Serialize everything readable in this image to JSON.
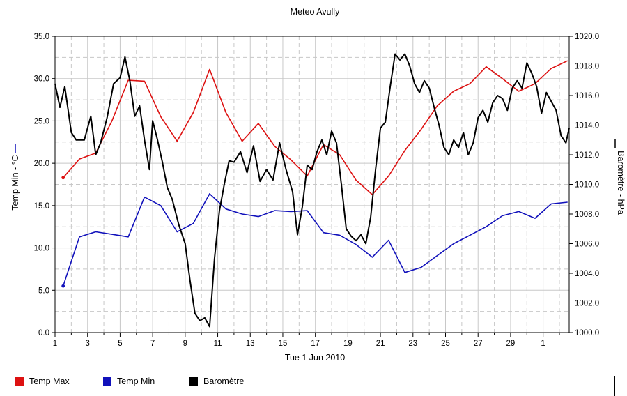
{
  "chart_data": {
    "type": "line",
    "title": "Meteo  Avully",
    "xlabel": "Tue 1 Jun 2010",
    "ylabel_left": "Temp Min - °C",
    "ylabel_right": "Baromètre - hPa",
    "x_tick_labels": [
      "1",
      "3",
      "5",
      "7",
      "9",
      "11",
      "13",
      "15",
      "17",
      "19",
      "21",
      "23",
      "25",
      "27",
      "29",
      "1"
    ],
    "y_left_ticks": [
      "0.0",
      "5.0",
      "10.0",
      "15.0",
      "20.0",
      "25.0",
      "30.0",
      "35.0"
    ],
    "y_right_ticks": [
      "1000.0",
      "1002.0",
      "1004.0",
      "1006.0",
      "1008.0",
      "1010.0",
      "1012.0",
      "1014.0",
      "1016.0",
      "1018.0",
      "1020.0"
    ],
    "ylim_left": [
      0,
      35
    ],
    "ylim_right": [
      1000,
      1020
    ],
    "xlim": [
      1,
      32.6
    ],
    "grid": true,
    "legend_position": "bottom",
    "colors": {
      "temp_max": "#dd1111",
      "temp_min": "#1111bb",
      "barometre": "#000000",
      "grid": "#c8c8c8"
    },
    "series": [
      {
        "name": "Temp Max",
        "axis": "left",
        "x": [
          1.5,
          2.5,
          3.5,
          4.5,
          5.5,
          6.5,
          7.5,
          8.5,
          9.5,
          10.5,
          11.5,
          12.5,
          13.5,
          14.5,
          15.5,
          16.5,
          17.5,
          18.5,
          19.5,
          20.5,
          21.5,
          22.5,
          23.5,
          24.5,
          25.5,
          26.5,
          27.5,
          28.5,
          29.5,
          30.5,
          31.5,
          32.5
        ],
        "values": [
          18.3,
          20.5,
          21.2,
          25.0,
          29.8,
          29.7,
          25.5,
          22.6,
          26.0,
          31.1,
          26.0,
          22.6,
          24.7,
          22.0,
          20.4,
          18.5,
          22.2,
          21.0,
          18.0,
          16.3,
          18.5,
          21.5,
          24.0,
          26.8,
          28.5,
          29.4,
          31.4,
          30.0,
          28.5,
          29.4,
          31.2,
          32.1
        ]
      },
      {
        "name": "Temp Min",
        "axis": "left",
        "x": [
          1.5,
          2.5,
          3.5,
          4.5,
          5.5,
          6.5,
          7.5,
          8.5,
          9.5,
          10.5,
          11.5,
          12.5,
          13.5,
          14.5,
          15.5,
          16.5,
          17.5,
          18.5,
          19.5,
          20.5,
          21.5,
          22.5,
          23.5,
          24.5,
          25.5,
          26.5,
          27.5,
          28.5,
          29.5,
          30.5,
          31.5,
          32.5
        ],
        "values": [
          5.5,
          11.3,
          11.9,
          11.6,
          11.3,
          16.0,
          15.0,
          11.9,
          12.9,
          16.4,
          14.6,
          14.0,
          13.7,
          14.4,
          14.3,
          14.4,
          11.8,
          11.5,
          10.4,
          8.9,
          10.9,
          7.1,
          7.7,
          9.1,
          10.5,
          11.5,
          12.5,
          13.8,
          14.3,
          13.5,
          15.2,
          15.4
        ]
      },
      {
        "name": "Baromètre",
        "axis": "right",
        "x": [
          1.0,
          1.3,
          1.6,
          2.0,
          2.3,
          2.8,
          3.2,
          3.5,
          3.8,
          4.2,
          4.6,
          5.0,
          5.3,
          5.6,
          5.9,
          6.2,
          6.5,
          6.8,
          7.0,
          7.3,
          7.6,
          7.9,
          8.2,
          8.6,
          9.0,
          9.3,
          9.6,
          9.9,
          10.2,
          10.5,
          10.8,
          11.1,
          11.4,
          11.7,
          12.0,
          12.4,
          12.8,
          13.2,
          13.6,
          14.0,
          14.4,
          14.8,
          15.2,
          15.6,
          15.9,
          16.2,
          16.5,
          16.8,
          17.1,
          17.4,
          17.7,
          18.0,
          18.3,
          18.6,
          18.9,
          19.2,
          19.5,
          19.8,
          20.1,
          20.4,
          20.7,
          21.0,
          21.3,
          21.6,
          21.9,
          22.2,
          22.5,
          22.8,
          23.1,
          23.4,
          23.7,
          24.0,
          24.3,
          24.6,
          24.9,
          25.2,
          25.5,
          25.8,
          26.1,
          26.4,
          26.7,
          27.0,
          27.3,
          27.6,
          27.9,
          28.2,
          28.5,
          28.8,
          29.1,
          29.4,
          29.7,
          30.0,
          30.3,
          30.6,
          30.9,
          31.2,
          31.5,
          31.8,
          32.1,
          32.4,
          32.6
        ],
        "values": [
          1016.8,
          1015.2,
          1016.6,
          1013.5,
          1013.0,
          1013.0,
          1014.6,
          1012.0,
          1012.8,
          1014.5,
          1016.8,
          1017.2,
          1018.6,
          1017.0,
          1014.6,
          1015.3,
          1013.0,
          1011.0,
          1014.3,
          1013.0,
          1011.5,
          1009.8,
          1009.0,
          1007.3,
          1006.0,
          1003.5,
          1001.3,
          1000.8,
          1001.0,
          1000.4,
          1005.0,
          1008.2,
          1010.0,
          1011.6,
          1011.5,
          1012.2,
          1010.8,
          1012.6,
          1010.2,
          1011.0,
          1010.3,
          1012.8,
          1011.0,
          1009.5,
          1006.6,
          1008.5,
          1011.3,
          1011.0,
          1012.2,
          1013.0,
          1012.0,
          1013.6,
          1012.8,
          1010.0,
          1007.0,
          1006.5,
          1006.2,
          1006.6,
          1006.0,
          1007.8,
          1011.0,
          1013.8,
          1014.2,
          1016.6,
          1018.8,
          1018.4,
          1018.8,
          1018.0,
          1016.8,
          1016.2,
          1017.0,
          1016.5,
          1015.2,
          1014.0,
          1012.5,
          1012.0,
          1013.0,
          1012.5,
          1013.5,
          1012.0,
          1012.8,
          1014.5,
          1015.0,
          1014.2,
          1015.5,
          1016.0,
          1015.8,
          1015.0,
          1016.5,
          1017.0,
          1016.5,
          1018.2,
          1017.5,
          1016.6,
          1014.8,
          1016.2,
          1015.6,
          1015.0,
          1013.3,
          1012.8,
          1013.8
        ]
      }
    ]
  },
  "legend": [
    {
      "label": "Temp Max",
      "color": "#dd1111"
    },
    {
      "label": "Temp Min",
      "color": "#1111bb"
    },
    {
      "label": "Baromètre",
      "color": "#000000"
    }
  ]
}
